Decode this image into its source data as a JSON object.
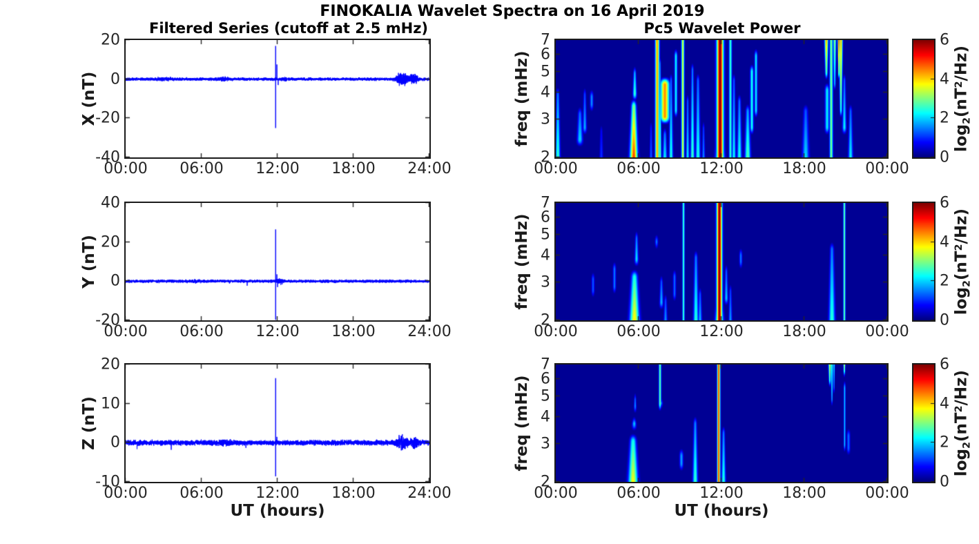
{
  "figure_title": "FINOKALIA Wavelet Spectra on 16 April 2019",
  "chart_data": [
    {
      "type": "line",
      "id": "series-x",
      "title": "Filtered Series (cutoff at 2.5 mHz)",
      "ylabel": "X (nT)",
      "xlabel": "UT (hours)",
      "line_color": "#0000ff",
      "xlim_hours": [
        0,
        24
      ],
      "ylim": [
        -40,
        20
      ],
      "yticks": [
        20,
        0,
        -20,
        -40
      ],
      "xtick_labels": [
        "00:00",
        "06:00",
        "12:00",
        "18:00",
        "24:00"
      ],
      "baseline_nT": 0,
      "noise_amp_nT": 0.35,
      "spike": {
        "t_hours": 11.85,
        "peak_nT": 17,
        "trough_nT": -25
      },
      "bursts": [
        {
          "t_hours": 21.9,
          "amp_nT": 1.6,
          "dur_hours": 1.0
        },
        {
          "t_hours": 22.8,
          "amp_nT": 1.2,
          "dur_hours": 0.7
        },
        {
          "t_hours": 7.8,
          "amp_nT": 0.45,
          "dur_hours": 1.2
        },
        {
          "t_hours": 3.0,
          "amp_nT": 0.3,
          "dur_hours": 2.0
        },
        {
          "t_hours": 12.5,
          "amp_nT": 0.5,
          "dur_hours": 0.5
        }
      ],
      "impulses": [
        {
          "t_hours": 11.95,
          "nT": 7.5
        },
        {
          "t_hours": 12.05,
          "nT": -3.0
        },
        {
          "t_hours": 21.55,
          "nT": 3.2
        },
        {
          "t_hours": 21.62,
          "nT": -3.4
        },
        {
          "t_hours": 22.55,
          "nT": 2.6
        },
        {
          "t_hours": 22.6,
          "nT": -2.4
        }
      ]
    },
    {
      "type": "line",
      "id": "series-y",
      "ylabel": "Y (nT)",
      "xlabel": "UT (hours)",
      "line_color": "#0000ff",
      "xlim_hours": [
        0,
        24
      ],
      "ylim": [
        -20,
        40
      ],
      "yticks": [
        40,
        20,
        0,
        -20
      ],
      "xtick_labels": [
        "00:00",
        "06:00",
        "12:00",
        "18:00",
        "24:00"
      ],
      "baseline_nT": 0,
      "noise_amp_nT": 0.35,
      "spike": {
        "t_hours": 11.85,
        "peak_nT": 26.5,
        "trough_nT": -19.7
      },
      "bursts": [
        {
          "t_hours": 12.2,
          "amp_nT": 0.6,
          "dur_hours": 0.6
        },
        {
          "t_hours": 5.5,
          "amp_nT": 0.3,
          "dur_hours": 1.0
        }
      ],
      "impulses": [
        {
          "t_hours": 9.6,
          "nT": -2.3
        },
        {
          "t_hours": 8.2,
          "nT": -1.2
        },
        {
          "t_hours": 11.95,
          "nT": 3.5
        },
        {
          "t_hours": 12.0,
          "nT": -3.0
        }
      ]
    },
    {
      "type": "line",
      "id": "series-z",
      "ylabel": "Z (nT)",
      "xlabel": "UT (hours)",
      "line_color": "#0000ff",
      "xlim_hours": [
        0,
        24
      ],
      "ylim": [
        -10,
        20
      ],
      "yticks": [
        20,
        10,
        0,
        -10
      ],
      "xtick_labels": [
        "00:00",
        "06:00",
        "12:00",
        "18:00",
        "24:00"
      ],
      "baseline_nT": 0,
      "noise_amp_nT": 0.3,
      "spike": {
        "t_hours": 11.85,
        "peak_nT": 16.5,
        "trough_nT": -8.6
      },
      "bursts": [
        {
          "t_hours": 21.8,
          "amp_nT": 0.9,
          "dur_hours": 1.0
        },
        {
          "t_hours": 22.8,
          "amp_nT": 0.7,
          "dur_hours": 0.6
        },
        {
          "t_hours": 7.8,
          "amp_nT": 0.3,
          "dur_hours": 1.0
        }
      ],
      "impulses": [
        {
          "t_hours": 0.9,
          "nT": -1.6
        },
        {
          "t_hours": 3.6,
          "nT": -1.8
        },
        {
          "t_hours": 9.5,
          "nT": -1.3
        },
        {
          "t_hours": 11.95,
          "nT": 1.5
        }
      ]
    },
    {
      "type": "heatmap",
      "id": "wavelet-x",
      "title": "Pc5 Wavelet Power",
      "ylabel": "freq (mHz)",
      "xlabel": "UT (hours)",
      "yscale": "log",
      "ylim_mHz": [
        2,
        7
      ],
      "yticks": [
        2,
        3,
        4,
        5,
        6,
        7
      ],
      "xtick_labels": [
        "00:00",
        "06:00",
        "12:00",
        "18:00",
        "00:00"
      ],
      "colormap": "jet",
      "colorbar": {
        "lim": [
          0,
          6
        ],
        "ticks": [
          0,
          2,
          4,
          6
        ],
        "label": "log2(nT^2/Hz)",
        "label_parts": {
          "p1": "log",
          "s1": "2",
          "p2": "(nT",
          "s2": "2",
          "p3": "/Hz)"
        }
      },
      "feature_format": [
        "t_hours",
        "sigma_hours",
        "f_low_mHz",
        "f_high_mHz",
        "peak_log2_power",
        "bias(b=bottom,t=top,n=none)"
      ],
      "features": [
        [
          0.15,
          0.12,
          1.8,
          4.3,
          2.8,
          "b"
        ],
        [
          1.75,
          0.15,
          2.2,
          3.5,
          2.3,
          "b"
        ],
        [
          2.1,
          0.1,
          2.5,
          4.3,
          2.0,
          "b"
        ],
        [
          2.6,
          0.08,
          3.2,
          4.2,
          1.6,
          "n"
        ],
        [
          3.3,
          0.1,
          1.8,
          2.9,
          1.2,
          "b"
        ],
        [
          5.65,
          0.2,
          1.8,
          3.8,
          5.3,
          "b"
        ],
        [
          5.72,
          0.1,
          3.6,
          5.4,
          3.0,
          "b"
        ],
        [
          6.9,
          0.08,
          1.8,
          3.0,
          1.5,
          "b"
        ],
        [
          7.35,
          0.1,
          1.8,
          8.0,
          4.3,
          "n"
        ],
        [
          7.3,
          0.08,
          5.8,
          8.0,
          5.6,
          "t"
        ],
        [
          7.55,
          0.07,
          1.8,
          6.0,
          3.0,
          "b"
        ],
        [
          7.9,
          0.22,
          2.8,
          4.8,
          4.4,
          "n"
        ],
        [
          7.9,
          0.12,
          1.8,
          2.8,
          2.5,
          "b"
        ],
        [
          8.35,
          0.1,
          1.8,
          5.0,
          2.6,
          "b"
        ],
        [
          8.7,
          0.07,
          3.0,
          6.5,
          2.3,
          "n"
        ],
        [
          9.2,
          0.07,
          1.8,
          8.0,
          3.6,
          "n"
        ],
        [
          9.55,
          0.08,
          1.8,
          4.0,
          2.4,
          "b"
        ],
        [
          9.9,
          0.1,
          1.8,
          5.6,
          2.8,
          "b"
        ],
        [
          10.3,
          0.12,
          1.8,
          5.0,
          2.6,
          "b"
        ],
        [
          10.7,
          0.08,
          1.8,
          3.0,
          1.8,
          "b"
        ],
        [
          11.9,
          0.16,
          1.8,
          8.0,
          6.0,
          "n"
        ],
        [
          11.9,
          0.22,
          1.8,
          3.0,
          4.6,
          "b"
        ],
        [
          12.65,
          0.07,
          1.8,
          8.0,
          2.6,
          "n"
        ],
        [
          12.9,
          0.1,
          1.8,
          5.0,
          2.4,
          "b"
        ],
        [
          13.3,
          0.12,
          1.8,
          4.0,
          2.6,
          "b"
        ],
        [
          13.9,
          0.15,
          1.8,
          3.6,
          3.0,
          "b"
        ],
        [
          14.2,
          0.08,
          2.5,
          5.5,
          2.4,
          "n"
        ],
        [
          14.5,
          0.07,
          3.0,
          6.5,
          2.2,
          "n"
        ],
        [
          18.1,
          0.18,
          1.8,
          3.6,
          2.2,
          "b"
        ],
        [
          19.6,
          0.1,
          4.5,
          8.0,
          4.8,
          "t"
        ],
        [
          19.65,
          0.1,
          2.5,
          4.5,
          2.2,
          "n"
        ],
        [
          19.95,
          0.08,
          1.8,
          8.0,
          3.0,
          "n"
        ],
        [
          20.2,
          0.08,
          4.0,
          8.0,
          3.4,
          "t"
        ],
        [
          20.5,
          0.06,
          4.5,
          8.0,
          5.8,
          "t"
        ],
        [
          20.65,
          0.09,
          3.0,
          8.0,
          4.6,
          "t"
        ],
        [
          20.9,
          0.1,
          2.5,
          5.0,
          2.4,
          "b"
        ],
        [
          21.35,
          0.12,
          1.8,
          3.6,
          2.4,
          "b"
        ]
      ]
    },
    {
      "type": "heatmap",
      "id": "wavelet-y",
      "ylabel": "freq (mHz)",
      "xlabel": "UT (hours)",
      "yscale": "log",
      "ylim_mHz": [
        2,
        7
      ],
      "yticks": [
        2,
        3,
        4,
        5,
        6,
        7
      ],
      "xtick_labels": [
        "00:00",
        "06:00",
        "12:00",
        "18:00",
        "00:00"
      ],
      "colormap": "jet",
      "colorbar": {
        "lim": [
          0,
          6
        ],
        "ticks": [
          0,
          2,
          4,
          6
        ],
        "label": "log2(nT^2/Hz)",
        "label_parts": {
          "p1": "log",
          "s1": "2",
          "p2": "(nT",
          "s2": "2",
          "p3": "/Hz)"
        }
      },
      "features": [
        [
          2.7,
          0.07,
          2.5,
          3.4,
          1.3,
          "n"
        ],
        [
          4.25,
          0.07,
          2.6,
          3.8,
          1.5,
          "n"
        ],
        [
          5.7,
          0.25,
          1.8,
          3.5,
          4.2,
          "b"
        ],
        [
          5.85,
          0.1,
          3.5,
          5.3,
          2.4,
          "b"
        ],
        [
          7.3,
          0.07,
          4.2,
          5.1,
          1.5,
          "n"
        ],
        [
          7.65,
          0.1,
          2.2,
          3.3,
          2.1,
          "b"
        ],
        [
          7.95,
          0.1,
          1.8,
          2.7,
          1.9,
          "b"
        ],
        [
          8.6,
          0.07,
          2.4,
          3.5,
          1.4,
          "n"
        ],
        [
          9.25,
          0.055,
          1.8,
          8.0,
          2.7,
          "n"
        ],
        [
          10.15,
          0.13,
          1.8,
          4.3,
          2.7,
          "b"
        ],
        [
          10.45,
          0.1,
          1.8,
          2.9,
          2.1,
          "b"
        ],
        [
          11.85,
          0.13,
          1.8,
          8.0,
          6.0,
          "n"
        ],
        [
          11.85,
          0.2,
          1.8,
          2.8,
          4.8,
          "b"
        ],
        [
          12.35,
          0.09,
          2.3,
          3.7,
          2.2,
          "b"
        ],
        [
          12.65,
          0.09,
          1.8,
          3.0,
          1.9,
          "b"
        ],
        [
          13.4,
          0.07,
          3.4,
          4.4,
          1.5,
          "n"
        ],
        [
          20.0,
          0.16,
          1.8,
          4.7,
          2.7,
          "b"
        ],
        [
          20.9,
          0.055,
          1.8,
          8.0,
          2.9,
          "n"
        ]
      ]
    },
    {
      "type": "heatmap",
      "id": "wavelet-z",
      "ylabel": "freq (mHz)",
      "xlabel": "UT (hours)",
      "yscale": "log",
      "ylim_mHz": [
        2,
        7
      ],
      "yticks": [
        2,
        3,
        4,
        5,
        6,
        7
      ],
      "xtick_labels": [
        "00:00",
        "06:00",
        "12:00",
        "18:00",
        "00:00"
      ],
      "colormap": "jet",
      "colorbar": {
        "lim": [
          0,
          6
        ],
        "ticks": [
          0,
          2,
          4,
          6
        ],
        "label": "log2(nT^2/Hz)",
        "label_parts": {
          "p1": "log",
          "s1": "2",
          "p2": "(nT",
          "s2": "2",
          "p3": "/Hz)"
        }
      },
      "features": [
        [
          5.6,
          0.25,
          1.8,
          3.4,
          4.1,
          "b"
        ],
        [
          5.68,
          0.12,
          3.4,
          4.1,
          2.6,
          "b"
        ],
        [
          5.75,
          0.07,
          4.1,
          5.3,
          2.0,
          "b"
        ],
        [
          7.55,
          0.06,
          4.2,
          8.0,
          2.9,
          "n"
        ],
        [
          7.6,
          0.09,
          4.3,
          5.0,
          2.2,
          "n"
        ],
        [
          9.1,
          0.09,
          2.2,
          2.9,
          1.7,
          "n"
        ],
        [
          10.1,
          0.13,
          1.8,
          4.1,
          2.8,
          "b"
        ],
        [
          11.8,
          0.075,
          1.8,
          8.0,
          4.9,
          "n"
        ],
        [
          11.8,
          0.06,
          4.7,
          8.0,
          6.0,
          "t"
        ],
        [
          11.8,
          0.1,
          1.8,
          2.6,
          4.0,
          "b"
        ],
        [
          12.15,
          0.11,
          1.8,
          3.7,
          2.7,
          "b"
        ],
        [
          19.85,
          0.08,
          5.4,
          8.0,
          4.3,
          "t"
        ],
        [
          20.0,
          0.06,
          4.4,
          8.0,
          3.1,
          "t"
        ],
        [
          20.15,
          0.05,
          5.0,
          8.0,
          2.6,
          "t"
        ],
        [
          20.9,
          0.06,
          6.0,
          8.0,
          4.5,
          "t"
        ],
        [
          20.92,
          0.045,
          2.7,
          6.0,
          2.0,
          "n"
        ],
        [
          21.2,
          0.08,
          2.6,
          3.6,
          1.4,
          "n"
        ]
      ]
    }
  ]
}
